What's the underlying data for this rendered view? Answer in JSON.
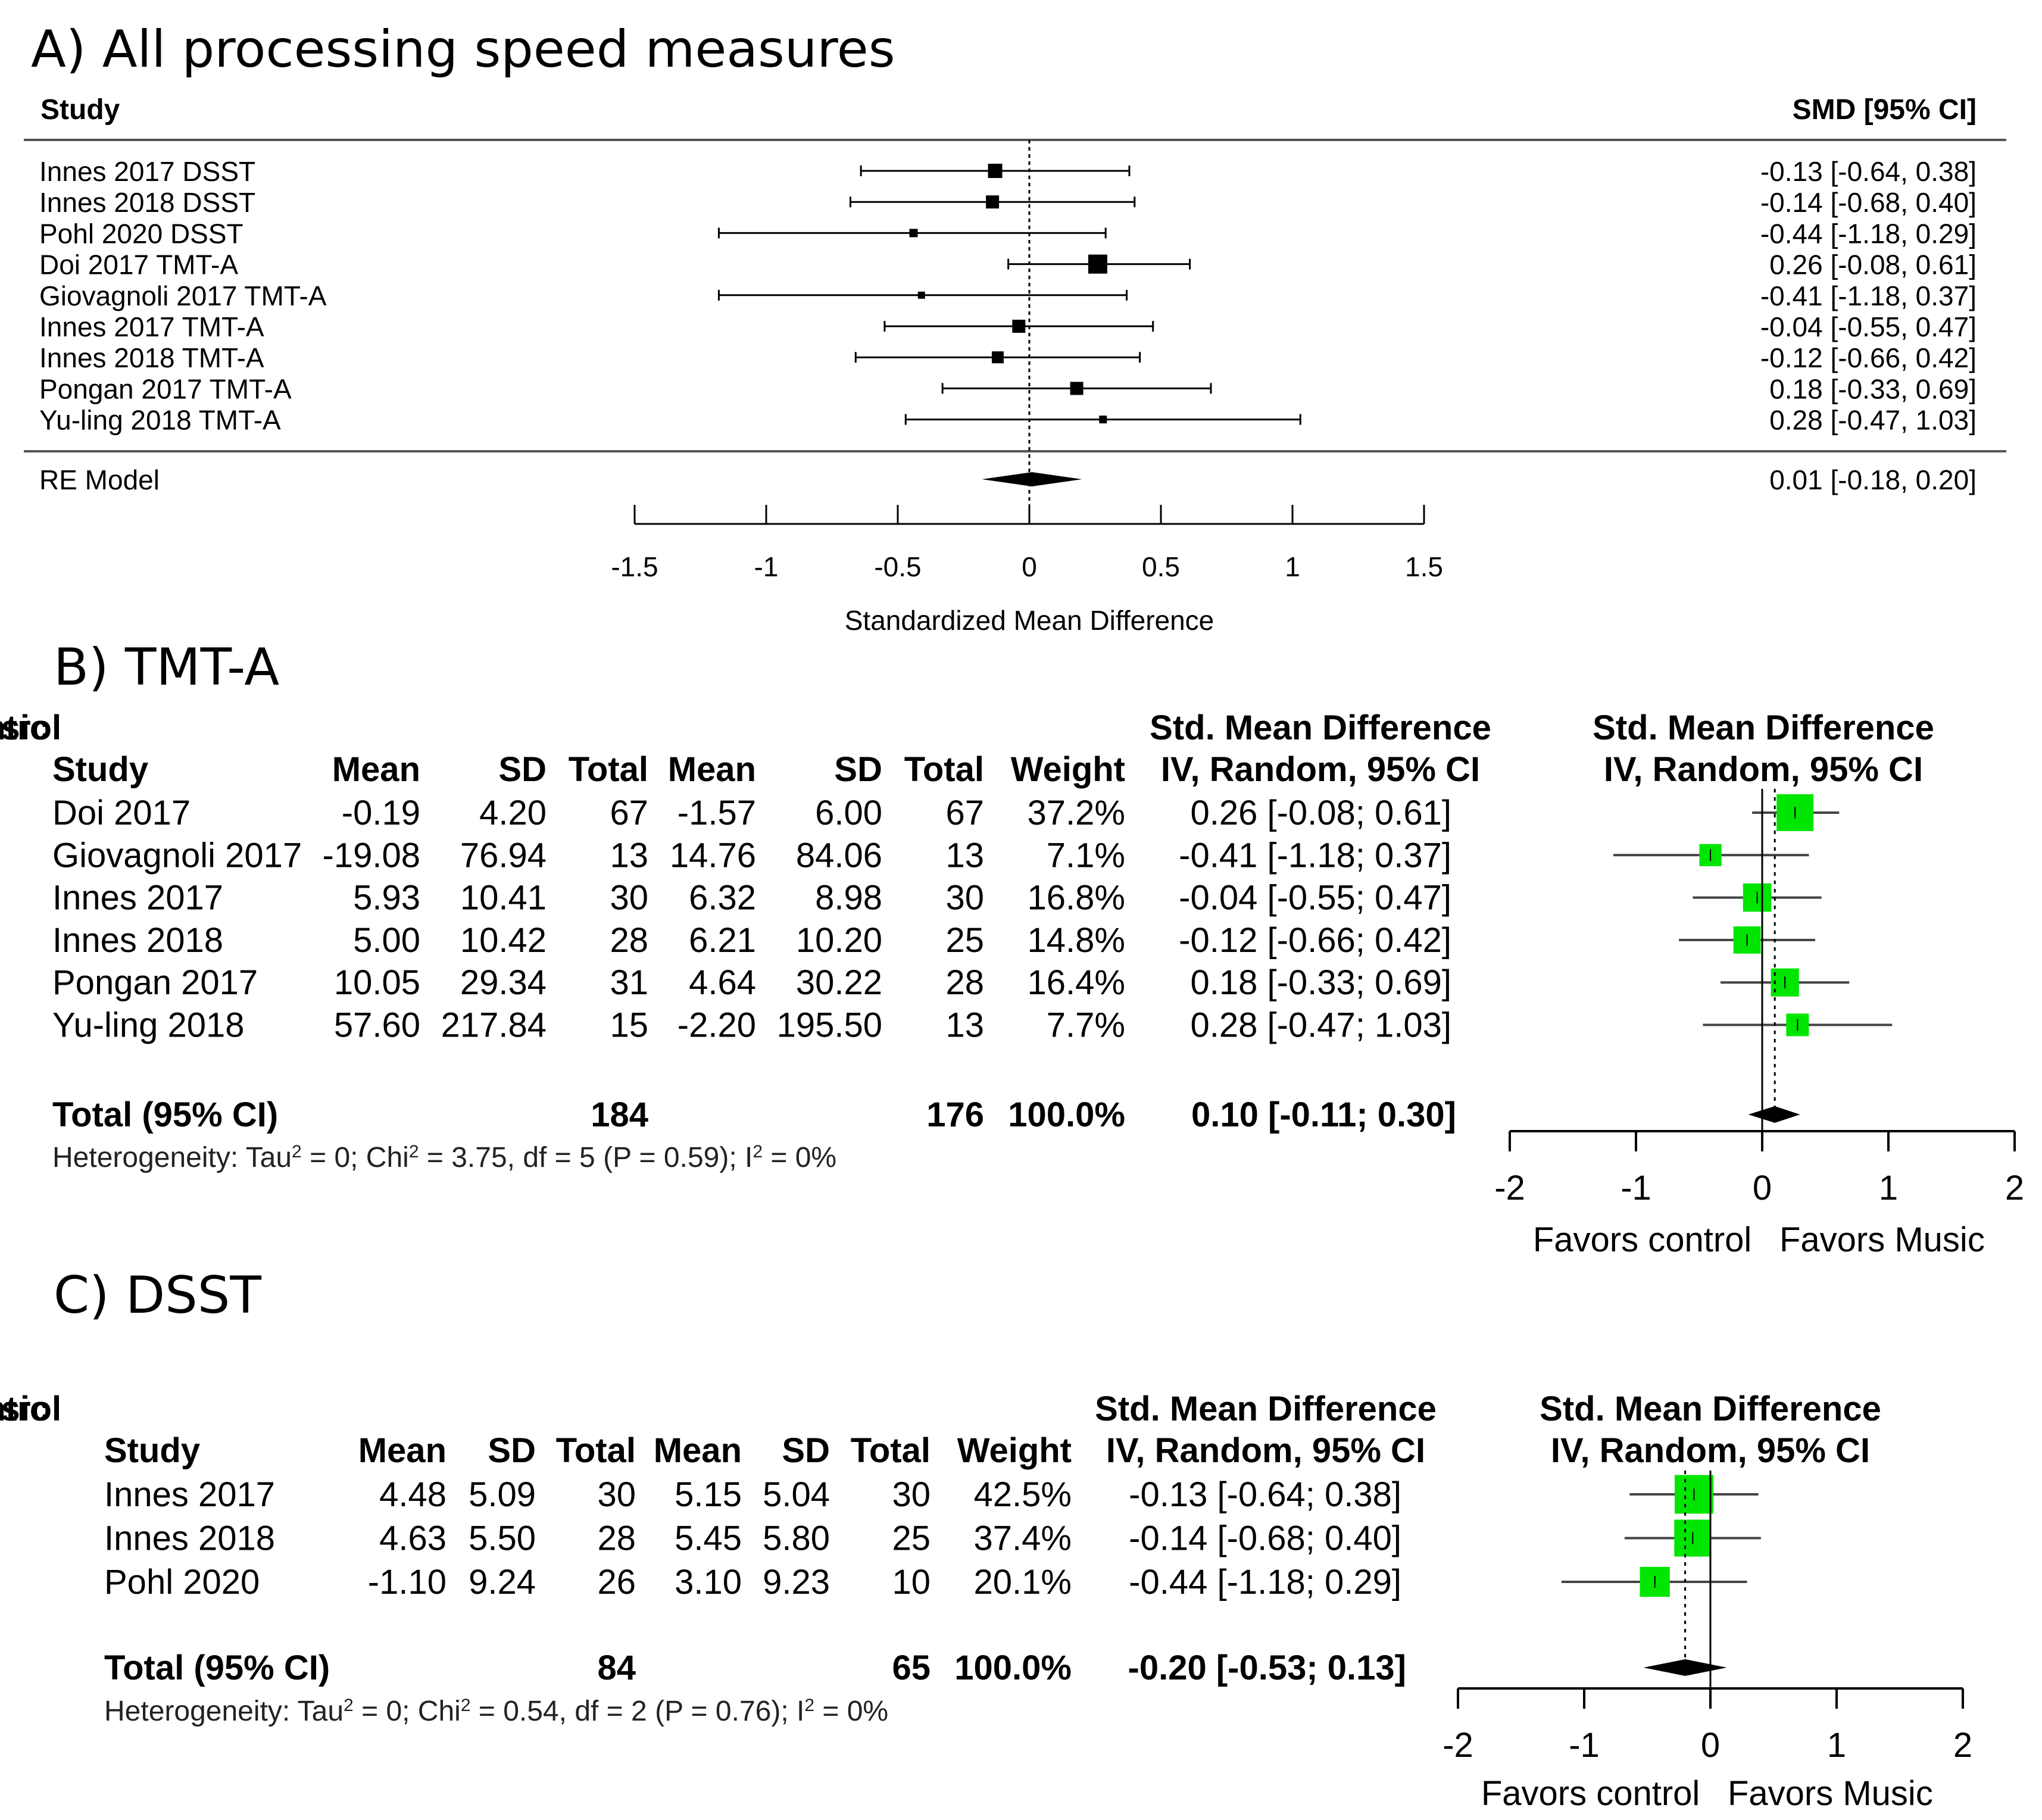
{
  "chart_data": [
    {
      "type": "forest",
      "panel_title": "A)  All processing speed measures",
      "header": {
        "study": "Study",
        "smd_ci": "SMD [95% CI]"
      },
      "studies": [
        {
          "label": "Innes 2017 DSST",
          "smd": -0.13,
          "lo": -0.64,
          "hi": 0.38,
          "ci_text": "-0.13 [-0.64, 0.38]",
          "marker": 24
        },
        {
          "label": "Innes 2018 DSST",
          "smd": -0.14,
          "lo": -0.68,
          "hi": 0.4,
          "ci_text": "-0.14 [-0.68, 0.40]",
          "marker": 22
        },
        {
          "label": "Pohl 2020 DSST",
          "smd": -0.44,
          "lo": -1.18,
          "hi": 0.29,
          "ci_text": "-0.44 [-1.18, 0.29]",
          "marker": 14
        },
        {
          "label": "Doi 2017 TMT-A",
          "smd": 0.26,
          "lo": -0.08,
          "hi": 0.61,
          "ci_text": "0.26 [-0.08, 0.61]",
          "marker": 32
        },
        {
          "label": "Giovagnoli 2017 TMT-A",
          "smd": -0.41,
          "lo": -1.18,
          "hi": 0.37,
          "ci_text": "-0.41 [-1.18, 0.37]",
          "marker": 12
        },
        {
          "label": "Innes 2017 TMT-A",
          "smd": -0.04,
          "lo": -0.55,
          "hi": 0.47,
          "ci_text": "-0.04 [-0.55, 0.47]",
          "marker": 22
        },
        {
          "label": "Innes 2018 TMT-A",
          "smd": -0.12,
          "lo": -0.66,
          "hi": 0.42,
          "ci_text": "-0.12 [-0.66, 0.42]",
          "marker": 20
        },
        {
          "label": "Pongan 2017 TMT-A",
          "smd": 0.18,
          "lo": -0.33,
          "hi": 0.69,
          "ci_text": "0.18 [-0.33, 0.69]",
          "marker": 22
        },
        {
          "label": "Yu-ling 2018 TMT-A",
          "smd": 0.28,
          "lo": -0.47,
          "hi": 1.03,
          "ci_text": "0.28 [-0.47, 1.03]",
          "marker": 13
        }
      ],
      "summary": {
        "label": "RE Model",
        "smd": 0.01,
        "lo": -0.18,
        "hi": 0.2,
        "ci_text": "0.01 [-0.18, 0.20]"
      },
      "xlim": [
        -1.5,
        1.5
      ],
      "ticks": [
        -1.5,
        -1,
        -0.5,
        0,
        0.5,
        1,
        1.5
      ],
      "tick_labels": [
        "-1.5",
        "-1",
        "-0.5",
        "0",
        "0.5",
        "1",
        "1.5"
      ],
      "xlabel": "Standardized Mean Difference",
      "reference_line": 0
    },
    {
      "type": "forest",
      "panel_title": "B)  TMT-A",
      "group_headers": {
        "music": "Music",
        "control": "Control",
        "smd": "Std. Mean Difference",
        "plot": "Std. Mean Difference"
      },
      "columns": [
        "Study",
        "Mean",
        "SD",
        "Total",
        "Mean",
        "SD",
        "Total",
        "Weight",
        "IV, Random, 95% CI",
        "IV, Random, 95% CI"
      ],
      "rows": [
        {
          "study": "Doi 2017",
          "m_mean": "-0.19",
          "m_sd": "4.20",
          "m_total": "67",
          "c_mean": "-1.57",
          "c_sd": "6.00",
          "c_total": "67",
          "weight": "37.2%",
          "ci_text": "0.26 [-0.08; 0.61]",
          "smd": 0.26,
          "lo": -0.08,
          "hi": 0.61,
          "w": 37.2
        },
        {
          "study": "Giovagnoli 2017",
          "m_mean": "-19.08",
          "m_sd": "76.94",
          "m_total": "13",
          "c_mean": "14.76",
          "c_sd": "84.06",
          "c_total": "13",
          "weight": "7.1%",
          "ci_text": "-0.41 [-1.18; 0.37]",
          "smd": -0.41,
          "lo": -1.18,
          "hi": 0.37,
          "w": 7.1
        },
        {
          "study": "Innes 2017",
          "m_mean": "5.93",
          "m_sd": "10.41",
          "m_total": "30",
          "c_mean": "6.32",
          "c_sd": "8.98",
          "c_total": "30",
          "weight": "16.8%",
          "ci_text": "-0.04 [-0.55; 0.47]",
          "smd": -0.04,
          "lo": -0.55,
          "hi": 0.47,
          "w": 16.8
        },
        {
          "study": "Innes 2018",
          "m_mean": "5.00",
          "m_sd": "10.42",
          "m_total": "28",
          "c_mean": "6.21",
          "c_sd": "10.20",
          "c_total": "25",
          "weight": "14.8%",
          "ci_text": "-0.12 [-0.66; 0.42]",
          "smd": -0.12,
          "lo": -0.66,
          "hi": 0.42,
          "w": 14.8
        },
        {
          "study": "Pongan 2017",
          "m_mean": "10.05",
          "m_sd": "29.34",
          "m_total": "31",
          "c_mean": "4.64",
          "c_sd": "30.22",
          "c_total": "28",
          "weight": "16.4%",
          "ci_text": "0.18 [-0.33; 0.69]",
          "smd": 0.18,
          "lo": -0.33,
          "hi": 0.69,
          "w": 16.4
        },
        {
          "study": "Yu-ling 2018",
          "m_mean": "57.60",
          "m_sd": "217.84",
          "m_total": "15",
          "c_mean": "-2.20",
          "c_sd": "195.50",
          "c_total": "13",
          "weight": "7.7%",
          "ci_text": "0.28 [-0.47; 1.03]",
          "smd": 0.28,
          "lo": -0.47,
          "hi": 1.03,
          "w": 7.7
        }
      ],
      "total": {
        "label": "Total (95% CI)",
        "m_total": "184",
        "c_total": "176",
        "weight": "100.0%",
        "ci_text": "0.10 [-0.11; 0.30]",
        "smd": 0.1,
        "lo": -0.11,
        "hi": 0.3
      },
      "heterogeneity": {
        "text1": "Heterogeneity: Tau",
        "sup1": "2",
        "text2": " = 0; Chi",
        "sup2": "2",
        "text3": " = 3.75, df = 5 (P = 0.59); I",
        "sup3": "2",
        "text4": " = 0%"
      },
      "xlim": [
        -2,
        2
      ],
      "ticks": [
        -2,
        -1,
        0,
        1,
        2
      ],
      "tick_labels": [
        "-2",
        "-1",
        "0",
        "1",
        "2"
      ],
      "favors_left": "Favors control",
      "favors_right": "Favors Music",
      "reference_line": 0
    },
    {
      "type": "forest",
      "panel_title": "C)  DSST",
      "group_headers": {
        "music": "Music",
        "control": "Control",
        "smd": "Std. Mean Difference",
        "plot": "Std. Mean Difference"
      },
      "columns": [
        "Study",
        "Mean",
        "SD",
        "Total",
        "Mean",
        "SD",
        "Total",
        "Weight",
        "IV, Random, 95% CI",
        "IV, Random, 95% CI"
      ],
      "rows": [
        {
          "study": "Innes 2017",
          "m_mean": "4.48",
          "m_sd": "5.09",
          "m_total": "30",
          "c_mean": "5.15",
          "c_sd": "5.04",
          "c_total": "30",
          "weight": "42.5%",
          "ci_text": "-0.13 [-0.64; 0.38]",
          "smd": -0.13,
          "lo": -0.64,
          "hi": 0.38,
          "w": 42.5
        },
        {
          "study": "Innes 2018",
          "m_mean": "4.63",
          "m_sd": "5.50",
          "m_total": "28",
          "c_mean": "5.45",
          "c_sd": "5.80",
          "c_total": "25",
          "weight": "37.4%",
          "ci_text": "-0.14 [-0.68; 0.40]",
          "smd": -0.14,
          "lo": -0.68,
          "hi": 0.4,
          "w": 37.4
        },
        {
          "study": "Pohl 2020",
          "m_mean": "-1.10",
          "m_sd": "9.24",
          "m_total": "26",
          "c_mean": "3.10",
          "c_sd": "9.23",
          "c_total": "10",
          "weight": "20.1%",
          "ci_text": "-0.44 [-1.18; 0.29]",
          "smd": -0.44,
          "lo": -1.18,
          "hi": 0.29,
          "w": 20.1
        }
      ],
      "total": {
        "label": "Total (95% CI)",
        "m_total": "84",
        "c_total": "65",
        "weight": "100.0%",
        "ci_text": "-0.20 [-0.53; 0.13]",
        "smd": -0.2,
        "lo": -0.53,
        "hi": 0.13
      },
      "heterogeneity": {
        "text1": "Heterogeneity: Tau",
        "sup1": "2",
        "text2": " = 0; Chi",
        "sup2": "2",
        "text3": " = 0.54, df = 2 (P = 0.76); I",
        "sup3": "2",
        "text4": " = 0%"
      },
      "xlim": [
        -2,
        2
      ],
      "ticks": [
        -2,
        -1,
        0,
        1,
        2
      ],
      "tick_labels": [
        "-2",
        "-1",
        "0",
        "1",
        "2"
      ],
      "favors_left": "Favors control",
      "favors_right": "Favors Music",
      "reference_line": 0
    }
  ],
  "colors": {
    "marker_green": "#00e600",
    "ink": "#000000",
    "rule": "#555555"
  }
}
